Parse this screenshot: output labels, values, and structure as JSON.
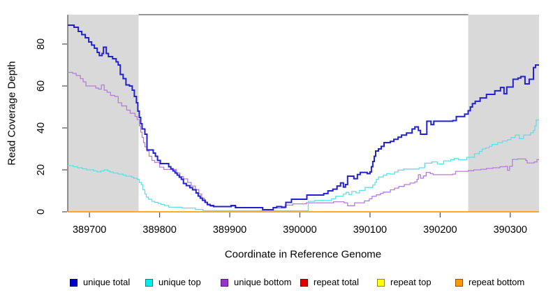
{
  "chart_data": {
    "type": "line",
    "style": "step-after",
    "title": "",
    "xlabel": "Coordinate in Reference Genome",
    "ylabel": "Read Coverage Depth",
    "xlim": [
      389669,
      390341
    ],
    "ylim": [
      0,
      94
    ],
    "x_ticks": [
      389700,
      389800,
      389900,
      390000,
      390100,
      390200,
      390300
    ],
    "y_ticks": [
      0,
      20,
      40,
      60,
      80
    ],
    "grid": false,
    "legend_position": "bottom",
    "shaded_x_ranges": [
      [
        389669,
        389770
      ],
      [
        390240,
        390341
      ]
    ],
    "shade_color": "#d9d9d9",
    "axis_color": "#303030",
    "series": [
      {
        "name": "unique total",
        "color": "#2121cd",
        "legend_color": "#0000cd",
        "width": 2,
        "points": [
          [
            389669,
            89
          ],
          [
            389678,
            88
          ],
          [
            389684,
            86
          ],
          [
            389689,
            84.5
          ],
          [
            389694,
            83
          ],
          [
            389699,
            81
          ],
          [
            389703,
            79.5
          ],
          [
            389707,
            78
          ],
          [
            389711,
            76
          ],
          [
            389714,
            74.5
          ],
          [
            389718,
            75.5
          ],
          [
            389720,
            78.5
          ],
          [
            389724,
            75.5
          ],
          [
            389727,
            74
          ],
          [
            389733,
            73
          ],
          [
            389738,
            71.5
          ],
          [
            389741,
            70
          ],
          [
            389744,
            65.5
          ],
          [
            389748,
            63.5
          ],
          [
            389752,
            60.5
          ],
          [
            389757,
            60
          ],
          [
            389761,
            58
          ],
          [
            389764,
            55
          ],
          [
            389767,
            52
          ],
          [
            389769,
            48
          ],
          [
            389771,
            45
          ],
          [
            389773,
            42
          ],
          [
            389775,
            39.5
          ],
          [
            389779,
            37
          ],
          [
            389782,
            29.5
          ],
          [
            389791,
            28
          ],
          [
            389794,
            26.5
          ],
          [
            389797,
            24.5
          ],
          [
            389801,
            23
          ],
          [
            389813,
            21.5
          ],
          [
            389816,
            20.5
          ],
          [
            389819,
            19.5
          ],
          [
            389822,
            18.5
          ],
          [
            389825,
            17.5
          ],
          [
            389828,
            16.5
          ],
          [
            389831,
            15.5
          ],
          [
            389834,
            13.5
          ],
          [
            389838,
            12.5
          ],
          [
            389843,
            11.5
          ],
          [
            389847,
            10.5
          ],
          [
            389852,
            9
          ],
          [
            389855,
            7.5
          ],
          [
            389858,
            6.5
          ],
          [
            389861,
            5.5
          ],
          [
            389865,
            4.5
          ],
          [
            389868,
            3.5
          ],
          [
            389872,
            3
          ],
          [
            389877,
            2.5
          ],
          [
            389902,
            3
          ],
          [
            389908,
            2
          ],
          [
            389947,
            1
          ],
          [
            389962,
            2
          ],
          [
            389967,
            2.5
          ],
          [
            389974,
            2.2
          ],
          [
            389980,
            4.5
          ],
          [
            389988,
            6
          ],
          [
            390010,
            8
          ],
          [
            390034,
            8.7
          ],
          [
            390040,
            10
          ],
          [
            390047,
            10.8
          ],
          [
            390053,
            12.3
          ],
          [
            390058,
            13.8
          ],
          [
            390062,
            11.8
          ],
          [
            390065,
            13
          ],
          [
            390068,
            17
          ],
          [
            390077,
            15.8
          ],
          [
            390082,
            17.8
          ],
          [
            390086,
            18.8
          ],
          [
            390096,
            18.2
          ],
          [
            390100,
            19
          ],
          [
            390102,
            21.5
          ],
          [
            390104,
            24
          ],
          [
            390106,
            26.5
          ],
          [
            390108,
            29
          ],
          [
            390112,
            30
          ],
          [
            390116,
            31.2
          ],
          [
            390120,
            33
          ],
          [
            390129,
            33.6
          ],
          [
            390134,
            34.6
          ],
          [
            390140,
            35.6
          ],
          [
            390145,
            36.6
          ],
          [
            390152,
            37.6
          ],
          [
            390160,
            39.5
          ],
          [
            390164,
            40.5
          ],
          [
            390169,
            38.8
          ],
          [
            390172,
            37
          ],
          [
            390181,
            43.2
          ],
          [
            390187,
            41.6
          ],
          [
            390191,
            43.2
          ],
          [
            390218,
            43.5
          ],
          [
            390223,
            45.4
          ],
          [
            390235,
            46.6
          ],
          [
            390240,
            48.2
          ],
          [
            390243,
            50
          ],
          [
            390246,
            51.6
          ],
          [
            390250,
            52.7
          ],
          [
            390257,
            54.3
          ],
          [
            390266,
            56
          ],
          [
            390278,
            57.7
          ],
          [
            390286,
            59.3
          ],
          [
            390291,
            56.3
          ],
          [
            390295,
            59.5
          ],
          [
            390304,
            63.2
          ],
          [
            390311,
            63.8
          ],
          [
            390315,
            64.5
          ],
          [
            390321,
            61
          ],
          [
            390327,
            63.2
          ],
          [
            390333,
            68.8
          ],
          [
            390336,
            70
          ]
        ]
      },
      {
        "name": "unique top",
        "color": "#5fdfe6",
        "legend_color": "#00eeee",
        "width": 1.3,
        "points": [
          [
            389669,
            22
          ],
          [
            389677,
            21.5
          ],
          [
            389683,
            21
          ],
          [
            389690,
            20.5
          ],
          [
            389696,
            20
          ],
          [
            389706,
            19.5
          ],
          [
            389711,
            19
          ],
          [
            389716,
            19.5
          ],
          [
            389721,
            20
          ],
          [
            389726,
            19.5
          ],
          [
            389729,
            19
          ],
          [
            389734,
            18.5
          ],
          [
            389741,
            18
          ],
          [
            389748,
            17.5
          ],
          [
            389752,
            17
          ],
          [
            389760,
            16.5
          ],
          [
            389763,
            16
          ],
          [
            389768,
            15.5
          ],
          [
            389771,
            14
          ],
          [
            389774,
            13
          ],
          [
            389776,
            10.5
          ],
          [
            389779,
            8.5
          ],
          [
            389781,
            7
          ],
          [
            389784,
            6
          ],
          [
            389789,
            5
          ],
          [
            389793,
            4.5
          ],
          [
            389798,
            4
          ],
          [
            389802,
            3.5
          ],
          [
            389807,
            3
          ],
          [
            389813,
            2.2
          ],
          [
            389832,
            1.8
          ],
          [
            389851,
            1.1
          ],
          [
            389862,
            0.5
          ],
          [
            390012,
            5
          ],
          [
            390021,
            5.4
          ],
          [
            390045,
            6.2
          ],
          [
            390051,
            7.4
          ],
          [
            390062,
            8.5
          ],
          [
            390066,
            9.3
          ],
          [
            390070,
            8.2
          ],
          [
            390074,
            9.7
          ],
          [
            390080,
            9
          ],
          [
            390085,
            10.2
          ],
          [
            390093,
            11.6
          ],
          [
            390104,
            12.8
          ],
          [
            390107,
            14
          ],
          [
            390109,
            15.5
          ],
          [
            390112,
            16.6
          ],
          [
            390119,
            17.5
          ],
          [
            390124,
            18.2
          ],
          [
            390129,
            18
          ],
          [
            390135,
            19
          ],
          [
            390140,
            19.9
          ],
          [
            390148,
            20.4
          ],
          [
            390170,
            21
          ],
          [
            390178,
            23.2
          ],
          [
            390188,
            23.8
          ],
          [
            390196,
            22.8
          ],
          [
            390205,
            24.3
          ],
          [
            390215,
            24.9
          ],
          [
            390220,
            25.4
          ],
          [
            390226,
            24.8
          ],
          [
            390238,
            26
          ],
          [
            390249,
            27.7
          ],
          [
            390256,
            28.8
          ],
          [
            390260,
            30
          ],
          [
            390265,
            30.5
          ],
          [
            390270,
            31.2
          ],
          [
            390274,
            32.1
          ],
          [
            390282,
            33
          ],
          [
            390289,
            33.8
          ],
          [
            390296,
            34.4
          ],
          [
            390301,
            35.4
          ],
          [
            390307,
            36.6
          ],
          [
            390313,
            34.9
          ],
          [
            390319,
            36.6
          ],
          [
            390329,
            37.7
          ],
          [
            390333,
            38.8
          ],
          [
            390335,
            41
          ],
          [
            390337,
            43.8
          ]
        ]
      },
      {
        "name": "unique bottom",
        "color": "#b87bdc",
        "legend_color": "#9932cc",
        "width": 1.3,
        "points": [
          [
            389669,
            66.5
          ],
          [
            389676,
            66
          ],
          [
            389681,
            65
          ],
          [
            389687,
            63.5
          ],
          [
            389691,
            62
          ],
          [
            389695,
            60
          ],
          [
            389709,
            59
          ],
          [
            389713,
            58.5
          ],
          [
            389717,
            60.5
          ],
          [
            389721,
            58
          ],
          [
            389725,
            57
          ],
          [
            389730,
            55.5
          ],
          [
            389736,
            55
          ],
          [
            389741,
            52
          ],
          [
            389746,
            50.5
          ],
          [
            389753,
            48.5
          ],
          [
            389758,
            47
          ],
          [
            389765,
            45.5
          ],
          [
            389768,
            44
          ],
          [
            389771,
            41
          ],
          [
            389773,
            38
          ],
          [
            389775,
            35.5
          ],
          [
            389777,
            33
          ],
          [
            389779,
            31
          ],
          [
            389782,
            29
          ],
          [
            389785,
            26.5
          ],
          [
            389789,
            24.5
          ],
          [
            389793,
            23.5
          ],
          [
            389800,
            21.3
          ],
          [
            389806,
            20.2
          ],
          [
            389824,
            18.5
          ],
          [
            389829,
            16.8
          ],
          [
            389834,
            15.7
          ],
          [
            389840,
            14
          ],
          [
            389845,
            12.3
          ],
          [
            389851,
            10.6
          ],
          [
            389856,
            8.5
          ],
          [
            389860,
            6.5
          ],
          [
            389864,
            4.5
          ],
          [
            389868,
            3.2
          ],
          [
            389873,
            2.6
          ],
          [
            389905,
            2.8
          ],
          [
            389909,
            2.1
          ],
          [
            389947,
            0.8
          ],
          [
            389962,
            1.8
          ],
          [
            389979,
            3.2
          ],
          [
            389990,
            3.8
          ],
          [
            390009,
            4.3
          ],
          [
            390048,
            4.8
          ],
          [
            390063,
            4.3
          ],
          [
            390068,
            2.9
          ],
          [
            390078,
            4.3
          ],
          [
            390092,
            5.2
          ],
          [
            390099,
            6.2
          ],
          [
            390103,
            7.4
          ],
          [
            390109,
            8.1
          ],
          [
            390115,
            8.8
          ],
          [
            390119,
            9.4
          ],
          [
            390129,
            10.5
          ],
          [
            390135,
            11.3
          ],
          [
            390141,
            12.1
          ],
          [
            390149,
            13
          ],
          [
            390157,
            13.7
          ],
          [
            390164,
            14.3
          ],
          [
            390167,
            15.5
          ],
          [
            390169,
            17.7
          ],
          [
            390172,
            16
          ],
          [
            390176,
            17.1
          ],
          [
            390180,
            18.8
          ],
          [
            390186,
            18.2
          ],
          [
            390190,
            17.7
          ],
          [
            390218,
            18
          ],
          [
            390222,
            19.3
          ],
          [
            390240,
            19.6
          ],
          [
            390248,
            20
          ],
          [
            390258,
            20.3
          ],
          [
            390266,
            20.7
          ],
          [
            390275,
            21
          ],
          [
            390285,
            21.5
          ],
          [
            390293,
            21.7
          ],
          [
            390296,
            19.8
          ],
          [
            390299,
            21.7
          ],
          [
            390303,
            25
          ],
          [
            390310,
            25.2
          ],
          [
            390322,
            24.5
          ],
          [
            390324,
            23.3
          ],
          [
            390334,
            23.8
          ],
          [
            390338,
            24.9
          ]
        ]
      },
      {
        "name": "repeat total",
        "color": "#e00000",
        "legend_color": "#e00000",
        "width": 1.3,
        "points": [
          [
            389669,
            0
          ],
          [
            390341,
            0
          ]
        ]
      },
      {
        "name": "repeat top",
        "color": "#ffff00",
        "legend_color": "#ffff00",
        "width": 1.3,
        "points": [
          [
            389669,
            0
          ],
          [
            390341,
            0
          ]
        ]
      },
      {
        "name": "repeat bottom",
        "color": "#ffa200",
        "legend_color": "#ff9900",
        "width": 1.6,
        "points": [
          [
            389669,
            0
          ],
          [
            390341,
            0
          ]
        ]
      }
    ]
  },
  "legend": {
    "items": [
      {
        "label": "unique total",
        "color": "#0000cd"
      },
      {
        "label": "unique top",
        "color": "#00eeee"
      },
      {
        "label": "unique bottom",
        "color": "#9932cc"
      },
      {
        "label": "repeat total",
        "color": "#e00000"
      },
      {
        "label": "repeat top",
        "color": "#ffff00"
      },
      {
        "label": "repeat bottom",
        "color": "#ff9900"
      }
    ]
  }
}
